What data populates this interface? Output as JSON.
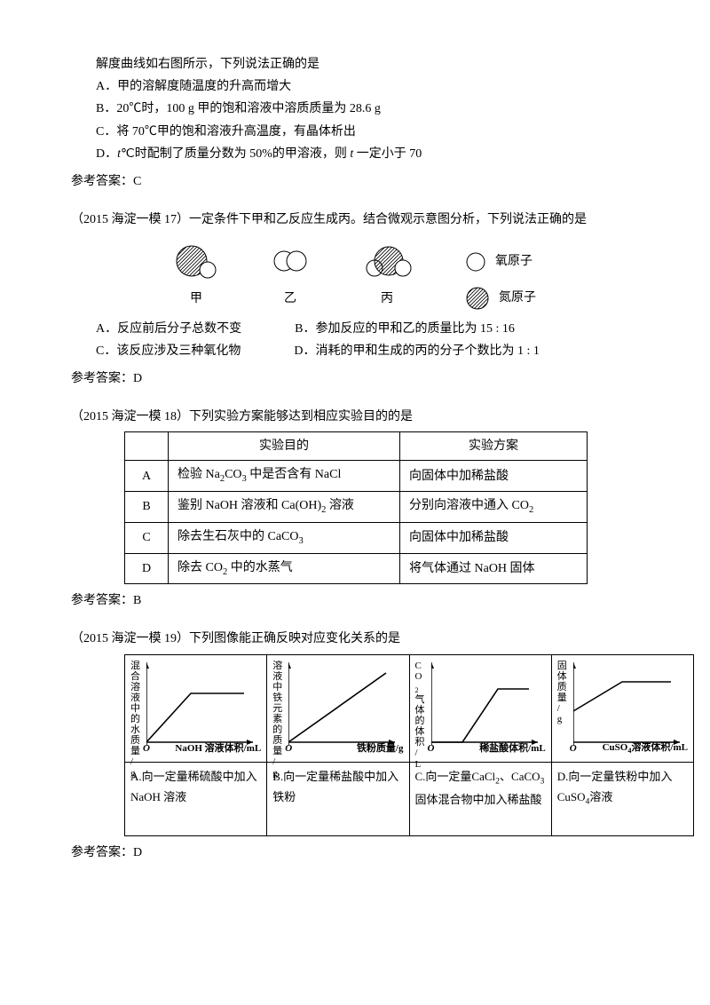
{
  "q16": {
    "stem": "解度曲线如右图所示，下列说法正确的是",
    "A": "A．甲的溶解度随温度的升高而增大",
    "B": "B．20℃时，100 g 甲的饱和溶液中溶质质量为 28.6 g",
    "C": "C．将 70℃甲的饱和溶液升高温度，有晶体析出",
    "D": "D．t℃时配制了质量分数为 50%的甲溶液，则 t 一定小于 70",
    "answer": "参考答案：C"
  },
  "q17": {
    "stem": "（2015 海淀一模 17）一定条件下甲和乙反应生成丙。结合微观示意图分析，下列说法正确的是",
    "labels": {
      "jia": "甲",
      "yi": "乙",
      "bing": "丙",
      "oxy": "氧原子",
      "nit": "氮原子"
    },
    "A": "A．反应前后分子总数不变",
    "B": "B．参加反应的甲和乙的质量比为 15 : 16",
    "C": "C．该反应涉及三种氧化物",
    "D": "D．消耗的甲和生成的丙的分子个数比为 1 : 1",
    "answer": "参考答案：D"
  },
  "q18": {
    "stem": "（2015 海淀一模 18）下列实验方案能够达到相应实验目的的是",
    "th1": "实验目的",
    "th2": "实验方案",
    "rows": [
      {
        "k": "A",
        "p": "检验 Na₂CO₃ 中是否含有 NaCl",
        "s": "向固体中加稀盐酸"
      },
      {
        "k": "B",
        "p": "鉴别 NaOH 溶液和 Ca(OH)₂ 溶液",
        "s": "分别向溶液中通入 CO₂"
      },
      {
        "k": "C",
        "p": "除去生石灰中的 CaCO₃",
        "s": "向固体中加稀盐酸"
      },
      {
        "k": "D",
        "p": "除去 CO₂ 中的水蒸气",
        "s": "将气体通过 NaOH 固体"
      }
    ],
    "answer": "参考答案：B"
  },
  "q19": {
    "stem": "（2015 海淀一模 19）下列图像能正确反映对应变化关系的是",
    "charts": [
      {
        "ylabel": "混合溶液中的水质量/g",
        "xlabel": "NaOH 溶液体积/mL",
        "caption": "A.向一定量稀硫酸中加入 NaOH 溶液",
        "shape": "rise-flat"
      },
      {
        "ylabel": "溶液中铁元素的质量/g",
        "xlabel": "铁粉质量/g",
        "caption": "B.向一定量稀盐酸中加入铁粉",
        "shape": "linear"
      },
      {
        "ylabel": "CO₂气体的体积/L",
        "xlabel": "稀盐酸体积/mL",
        "caption": "C.向一定量CaCl₂、CaCO₃固体混合物中加入稀盐酸",
        "shape": "delay-rise-flat"
      },
      {
        "ylabel": "固体质量/g",
        "xlabel": "CuSO₄溶液体积/mL",
        "caption": "D.向一定量铁粉中加入 CuSO₄溶液",
        "shape": "offset-rise-flat"
      }
    ],
    "answer": "参考答案：D"
  },
  "svg": {
    "nitColor": "#bbb",
    "stroke": "#000",
    "axis_w": 120,
    "axis_h": 100
  }
}
